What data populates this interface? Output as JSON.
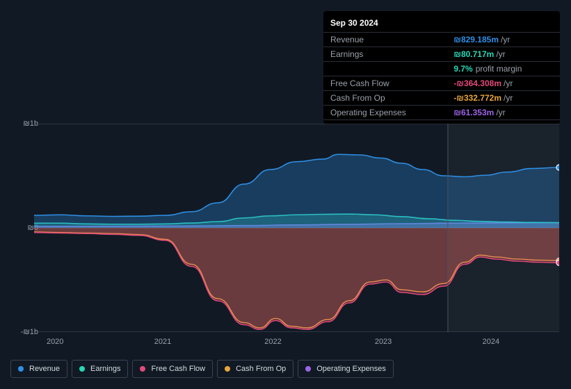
{
  "tooltip": {
    "date": "Sep 30 2024",
    "rows": [
      {
        "label": "Revenue",
        "value": "₪829.185m",
        "suffix": "/yr",
        "color": "#2f8fe6"
      },
      {
        "label": "Earnings",
        "value": "₪80.717m",
        "suffix": "/yr",
        "color": "#29d6b6",
        "margin": {
          "pct": "9.7%",
          "label": "profit margin"
        }
      },
      {
        "label": "Free Cash Flow",
        "value": "-₪364.308m",
        "suffix": "/yr",
        "color": "#e24a7a"
      },
      {
        "label": "Cash From Op",
        "value": "-₪332.772m",
        "suffix": "/yr",
        "color": "#e7a53d"
      },
      {
        "label": "Operating Expenses",
        "value": "₪61.353m",
        "suffix": "/yr",
        "color": "#9d64e8"
      }
    ]
  },
  "chart": {
    "type": "area",
    "background": "#111a24",
    "grid_color": "#3a434f",
    "text_color": "#9aa1ab",
    "forecast_start_x": 0.788,
    "y_axis": {
      "min": -1000,
      "max": 1000,
      "ticks": [
        {
          "v": 1000,
          "label": "₪1b"
        },
        {
          "v": 0,
          "label": "₪0"
        },
        {
          "v": -1000,
          "label": "-₪1b"
        }
      ]
    },
    "x_axis": {
      "labels": [
        {
          "x": 0.04,
          "text": "2020"
        },
        {
          "x": 0.245,
          "text": "2021"
        },
        {
          "x": 0.455,
          "text": "2022"
        },
        {
          "x": 0.665,
          "text": "2023"
        },
        {
          "x": 0.87,
          "text": "2024"
        }
      ]
    },
    "series": [
      {
        "name": "Revenue",
        "color": "#2f8fe6",
        "fill": "rgba(47,143,230,0.30)",
        "points": [
          [
            0.0,
            120
          ],
          [
            0.05,
            125
          ],
          [
            0.1,
            115
          ],
          [
            0.15,
            110
          ],
          [
            0.2,
            112
          ],
          [
            0.25,
            120
          ],
          [
            0.3,
            155
          ],
          [
            0.35,
            240
          ],
          [
            0.4,
            420
          ],
          [
            0.45,
            560
          ],
          [
            0.5,
            635
          ],
          [
            0.55,
            660
          ],
          [
            0.58,
            705
          ],
          [
            0.62,
            700
          ],
          [
            0.66,
            670
          ],
          [
            0.7,
            620
          ],
          [
            0.74,
            560
          ],
          [
            0.78,
            500
          ],
          [
            0.82,
            490
          ],
          [
            0.86,
            505
          ],
          [
            0.9,
            535
          ],
          [
            0.95,
            570
          ],
          [
            1.0,
            580
          ]
        ],
        "end_marker": true
      },
      {
        "name": "Earnings",
        "color": "#29d6b6",
        "fill": "rgba(41,214,182,0.28)",
        "points": [
          [
            0.0,
            45
          ],
          [
            0.05,
            45
          ],
          [
            0.1,
            38
          ],
          [
            0.15,
            35
          ],
          [
            0.2,
            35
          ],
          [
            0.25,
            38
          ],
          [
            0.3,
            46
          ],
          [
            0.35,
            60
          ],
          [
            0.4,
            95
          ],
          [
            0.45,
            115
          ],
          [
            0.5,
            125
          ],
          [
            0.55,
            130
          ],
          [
            0.6,
            132
          ],
          [
            0.65,
            125
          ],
          [
            0.7,
            108
          ],
          [
            0.75,
            88
          ],
          [
            0.8,
            72
          ],
          [
            0.85,
            62
          ],
          [
            0.9,
            56
          ],
          [
            0.95,
            52
          ],
          [
            1.0,
            50
          ]
        ]
      },
      {
        "name": "Operating Expenses",
        "color": "#9d64e8",
        "fill": "rgba(157,100,232,0.45)",
        "points": [
          [
            0.0,
            15
          ],
          [
            0.1,
            15
          ],
          [
            0.2,
            16
          ],
          [
            0.3,
            18
          ],
          [
            0.4,
            22
          ],
          [
            0.5,
            28
          ],
          [
            0.6,
            34
          ],
          [
            0.7,
            40
          ],
          [
            0.8,
            45
          ],
          [
            0.9,
            48
          ],
          [
            1.0,
            50
          ]
        ]
      },
      {
        "name": "Free Cash Flow",
        "color": "#e24a7a",
        "fill": "rgba(226,74,122,0.28)",
        "points": [
          [
            0.0,
            -45
          ],
          [
            0.05,
            -50
          ],
          [
            0.1,
            -55
          ],
          [
            0.15,
            -62
          ],
          [
            0.2,
            -72
          ],
          [
            0.25,
            -120
          ],
          [
            0.3,
            -370
          ],
          [
            0.35,
            -700
          ],
          [
            0.4,
            -930
          ],
          [
            0.43,
            -975
          ],
          [
            0.46,
            -890
          ],
          [
            0.49,
            -960
          ],
          [
            0.52,
            -975
          ],
          [
            0.56,
            -900
          ],
          [
            0.6,
            -720
          ],
          [
            0.64,
            -540
          ],
          [
            0.67,
            -520
          ],
          [
            0.7,
            -620
          ],
          [
            0.74,
            -640
          ],
          [
            0.78,
            -560
          ],
          [
            0.82,
            -350
          ],
          [
            0.85,
            -280
          ],
          [
            0.88,
            -300
          ],
          [
            0.92,
            -320
          ],
          [
            0.96,
            -330
          ],
          [
            1.0,
            -335
          ]
        ],
        "end_marker": true
      },
      {
        "name": "Cash From Op",
        "color": "#e7a53d",
        "fill": "rgba(231,165,61,0.20)",
        "points": [
          [
            0.0,
            -40
          ],
          [
            0.05,
            -45
          ],
          [
            0.1,
            -50
          ],
          [
            0.15,
            -56
          ],
          [
            0.2,
            -65
          ],
          [
            0.25,
            -110
          ],
          [
            0.3,
            -350
          ],
          [
            0.35,
            -680
          ],
          [
            0.4,
            -910
          ],
          [
            0.43,
            -960
          ],
          [
            0.46,
            -870
          ],
          [
            0.49,
            -945
          ],
          [
            0.52,
            -960
          ],
          [
            0.56,
            -880
          ],
          [
            0.6,
            -700
          ],
          [
            0.64,
            -520
          ],
          [
            0.67,
            -500
          ],
          [
            0.7,
            -595
          ],
          [
            0.74,
            -615
          ],
          [
            0.78,
            -535
          ],
          [
            0.82,
            -330
          ],
          [
            0.85,
            -262
          ],
          [
            0.88,
            -280
          ],
          [
            0.92,
            -300
          ],
          [
            0.96,
            -310
          ],
          [
            1.0,
            -315
          ]
        ],
        "end_marker": true
      }
    ],
    "legend": [
      {
        "label": "Revenue",
        "color": "#2f8fe6"
      },
      {
        "label": "Earnings",
        "color": "#29d6b6"
      },
      {
        "label": "Free Cash Flow",
        "color": "#e24a7a"
      },
      {
        "label": "Cash From Op",
        "color": "#e7a53d"
      },
      {
        "label": "Operating Expenses",
        "color": "#9d64e8"
      }
    ]
  }
}
